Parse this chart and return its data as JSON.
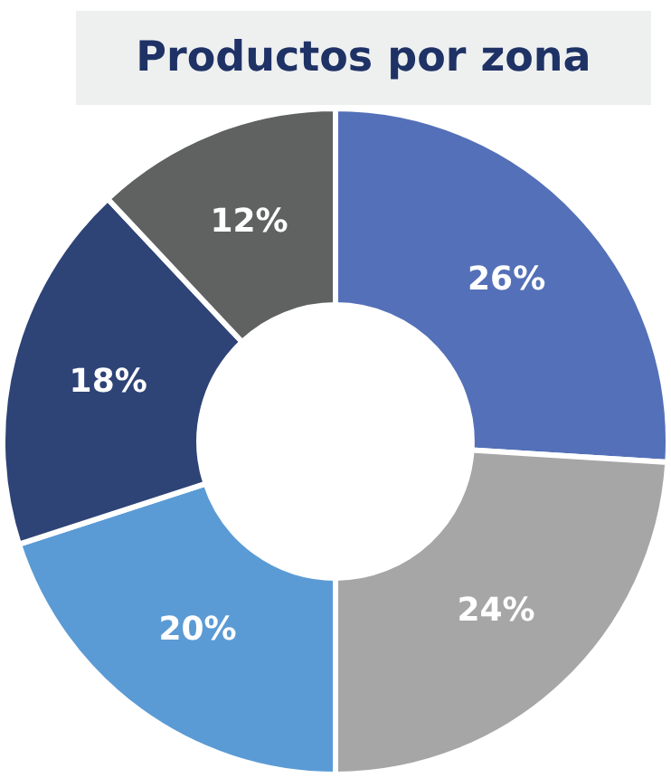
{
  "chart_data": {
    "type": "donut",
    "title": "Productos por zona",
    "categories": [
      null,
      null,
      null,
      null,
      null
    ],
    "values": [
      26,
      24,
      20,
      18,
      12
    ],
    "colors": [
      "#5470b8",
      "#a6a6a6",
      "#5b9bd5",
      "#2e4376",
      "#606161"
    ],
    "value_labels": [
      "26%",
      "24%",
      "20%",
      "18%",
      "12%"
    ],
    "legend": false
  }
}
